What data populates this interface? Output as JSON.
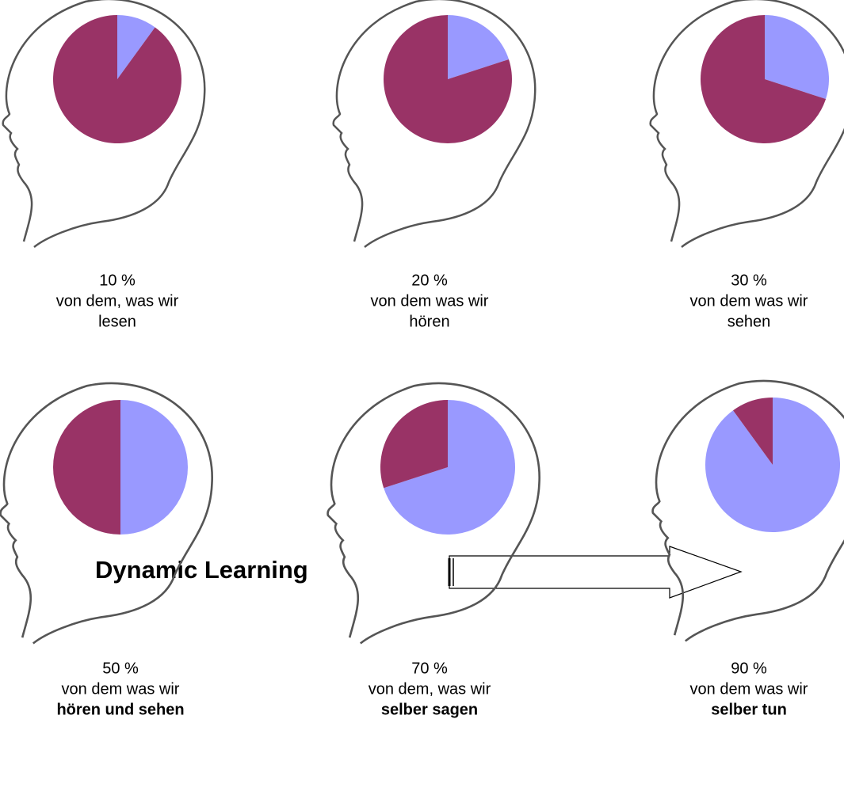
{
  "chart_data": [
    {
      "type": "pie",
      "values": [
        10,
        90
      ],
      "value_labels": [
        "10 %",
        null
      ],
      "colors": [
        "#9999ff",
        "#993366"
      ],
      "lines": [
        "von dem, was wir",
        "lesen"
      ],
      "bold_last_line": false
    },
    {
      "type": "pie",
      "values": [
        20,
        80
      ],
      "value_labels": [
        "20 %",
        null
      ],
      "colors": [
        "#9999ff",
        "#993366"
      ],
      "lines": [
        "von dem was wir",
        "hören"
      ],
      "bold_last_line": false
    },
    {
      "type": "pie",
      "values": [
        30,
        70
      ],
      "value_labels": [
        "30 %",
        null
      ],
      "colors": [
        "#9999ff",
        "#993366"
      ],
      "lines": [
        "von dem was wir",
        "sehen"
      ],
      "bold_last_line": false
    },
    {
      "type": "pie",
      "values": [
        50,
        50
      ],
      "value_labels": [
        "50 %",
        null
      ],
      "colors": [
        "#9999ff",
        "#993366"
      ],
      "lines": [
        "von dem was wir",
        "hören und sehen"
      ],
      "bold_last_line": true
    },
    {
      "type": "pie",
      "values": [
        70,
        30
      ],
      "value_labels": [
        "70 %",
        null
      ],
      "colors": [
        "#9999ff",
        "#993366"
      ],
      "lines": [
        "von dem, was wir",
        "selber sagen"
      ],
      "bold_last_line": true
    },
    {
      "type": "pie",
      "values": [
        90,
        10
      ],
      "value_labels": [
        "90 %",
        null
      ],
      "colors": [
        "#9999ff",
        "#993366"
      ],
      "lines": [
        "von dem was wir",
        "selber tun"
      ],
      "bold_last_line": true
    }
  ],
  "footer": {
    "title": "Dynamic Learning"
  }
}
